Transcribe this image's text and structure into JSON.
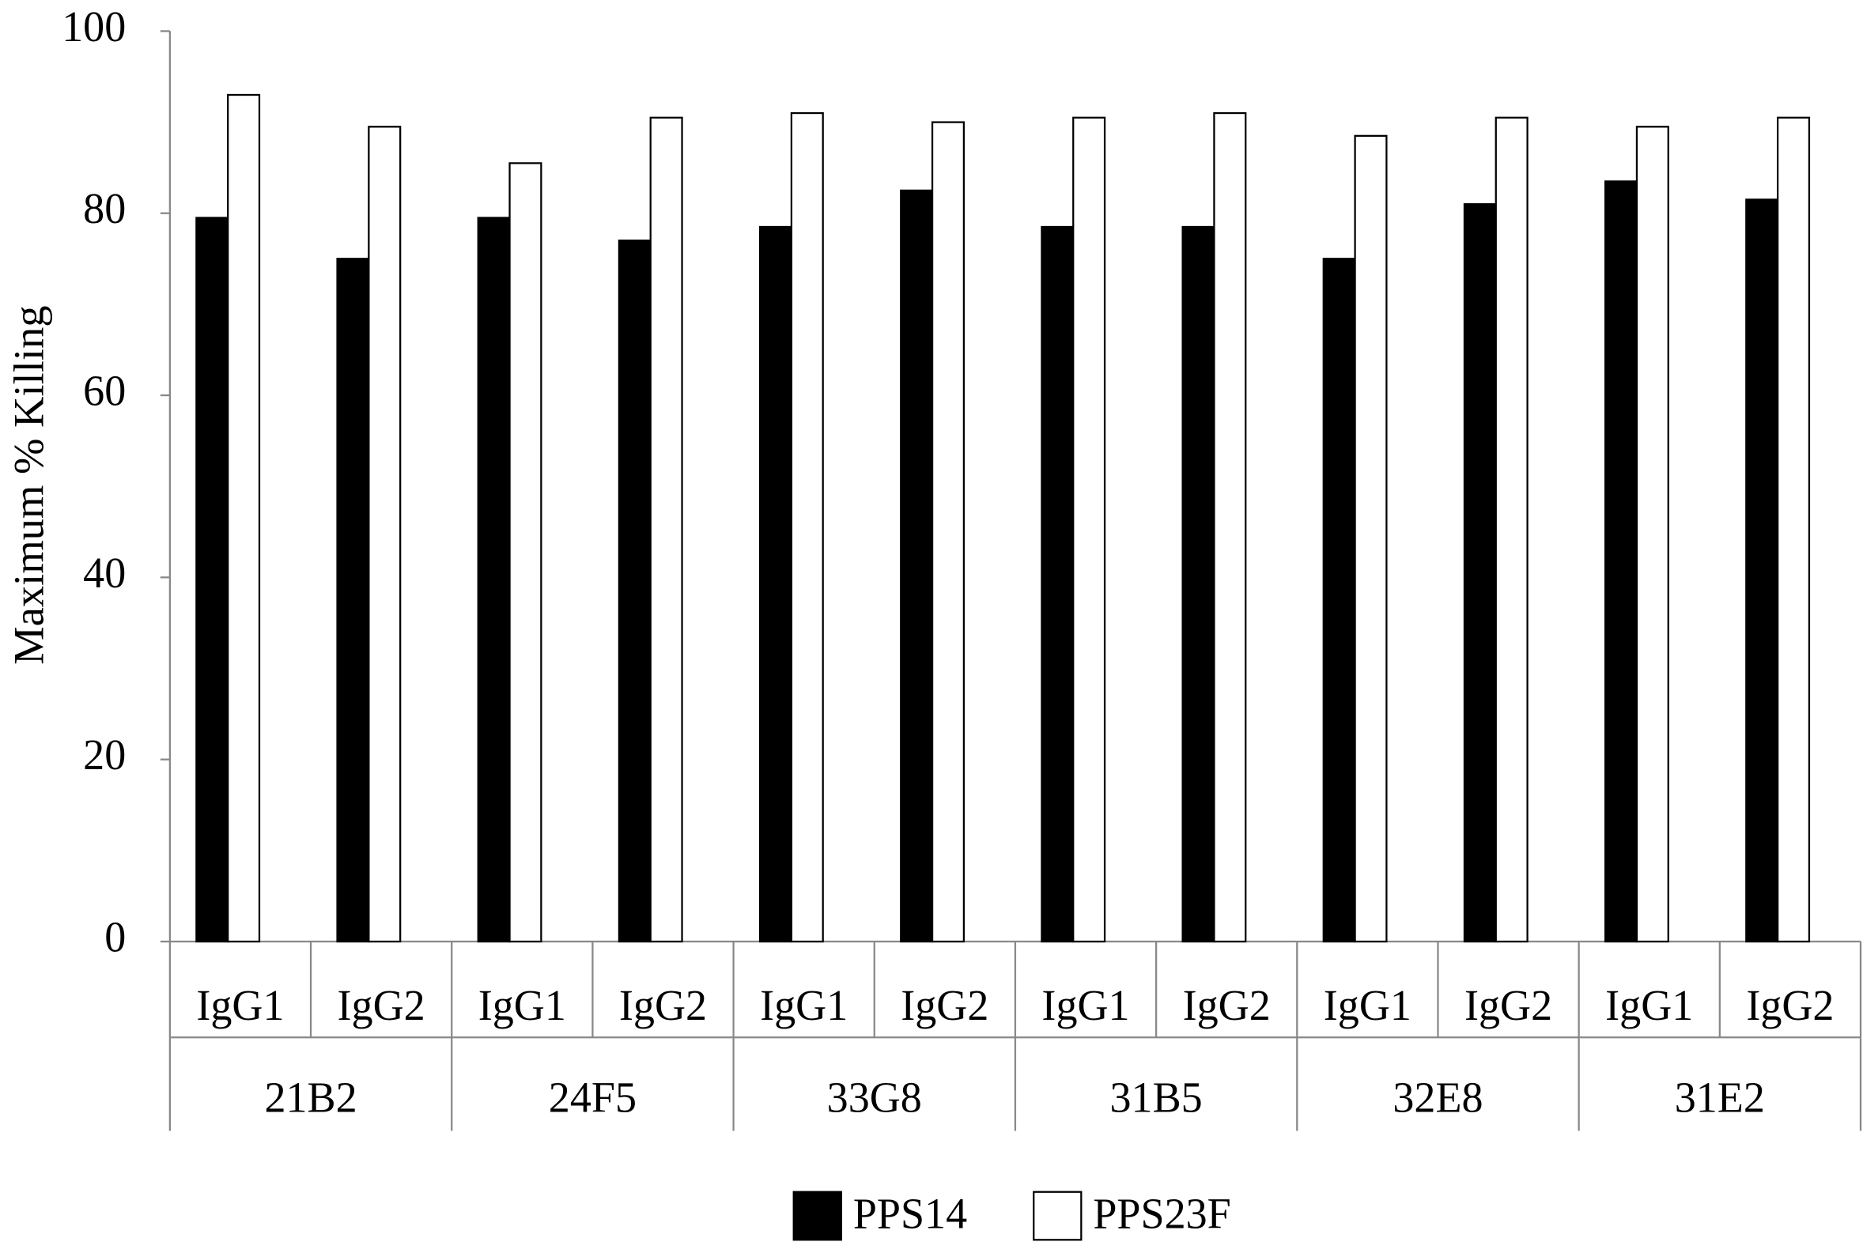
{
  "chart_data": {
    "type": "bar",
    "y_label": "Maximum % Killing",
    "categories": [
      "IgG1",
      "IgG2",
      "IgG1",
      "IgG2",
      "IgG1",
      "IgG2",
      "IgG1",
      "IgG2",
      "IgG1",
      "IgG2",
      "IgG1",
      "IgG2"
    ],
    "groups": [
      "21B2",
      "24F5",
      "33G8",
      "31B5",
      "32E8",
      "31E2"
    ],
    "series": [
      {
        "name": "PPS14",
        "color": "#000000",
        "values": [
          79.5,
          75,
          79.5,
          77,
          78.5,
          82.5,
          78.5,
          78.5,
          75,
          81,
          83.5,
          81.5
        ]
      },
      {
        "name": "PPS23F",
        "color": "#ffffff",
        "values": [
          93,
          89.5,
          85.5,
          90.5,
          91,
          90,
          90.5,
          91,
          88.5,
          90.5,
          89.5,
          90.5
        ]
      }
    ],
    "ylim": [
      0,
      100
    ],
    "yticks": [
      0,
      20,
      40,
      60,
      80,
      100
    ],
    "grid": false,
    "legend": "bottom"
  }
}
